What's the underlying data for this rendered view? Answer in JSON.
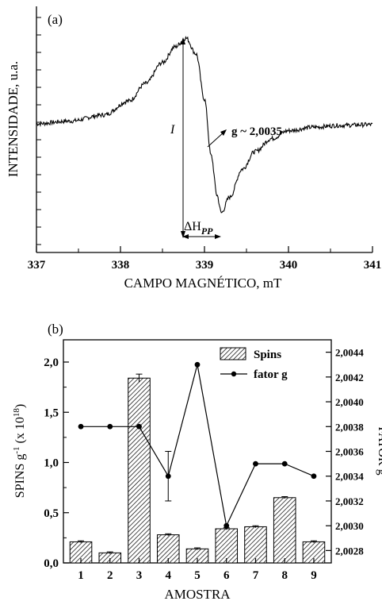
{
  "chart_data": [
    {
      "panel_label": "(a)",
      "type": "line",
      "xlabel": "CAMPO MAGNÉTICO, mT",
      "ylabel": "INTENSIDADE, u.a.",
      "xlim": [
        337,
        341
      ],
      "x_ticks": [
        "337",
        "338",
        "339",
        "340",
        "341"
      ],
      "y_ticks_labeled": false,
      "series": [
        {
          "x": [
            337.0,
            337.4,
            337.8,
            338.1,
            338.3,
            338.5,
            338.65,
            338.78,
            338.9,
            339.0,
            339.08,
            339.15,
            339.2,
            339.3,
            339.45,
            339.6,
            339.8,
            340.0,
            340.3,
            340.6,
            341.0
          ],
          "y": [
            0.02,
            0.05,
            0.12,
            0.28,
            0.48,
            0.72,
            0.9,
            1.0,
            0.82,
            0.3,
            -0.35,
            -0.8,
            -1.0,
            -0.82,
            -0.5,
            -0.3,
            -0.15,
            -0.06,
            -0.02,
            0.0,
            0.01
          ]
        }
      ],
      "annotations": {
        "g_value": "g ~ 2,0035",
        "intensity": "I",
        "linewidth": "ΔH",
        "linewidth_sub": "PP"
      }
    },
    {
      "panel_label": "(b)",
      "type": "bar",
      "xlabel": "AMOSTRA",
      "ylabel": "SPINS g",
      "ylabel_sup": "-1",
      "ylabel_rest": " (x 10",
      "ylabel_sup2": "18",
      "ylabel_end": ")",
      "y2label": "FATOR g",
      "categories": [
        "1",
        "2",
        "3",
        "4",
        "5",
        "6",
        "7",
        "8",
        "9"
      ],
      "ylim": [
        0,
        2.0
      ],
      "y_ticks": [
        {
          "value": 0,
          "label": "0,0"
        },
        {
          "value": 0.5,
          "label": "0,5"
        },
        {
          "value": 1.0,
          "label": "1,0"
        },
        {
          "value": 1.5,
          "label": "1,5"
        },
        {
          "value": 2.0,
          "label": "2,0"
        }
      ],
      "y2lim": [
        2.0027,
        2.0045
      ],
      "y2_ticks": [
        {
          "value": 2.0028,
          "label": "2,0028"
        },
        {
          "value": 2.003,
          "label": "2,0030"
        },
        {
          "value": 2.0032,
          "label": "2,0032"
        },
        {
          "value": 2.0034,
          "label": "2,0034"
        },
        {
          "value": 2.0036,
          "label": "2,0036"
        },
        {
          "value": 2.0038,
          "label": "2,0038"
        },
        {
          "value": 2.004,
          "label": "2,0040"
        },
        {
          "value": 2.0042,
          "label": "2,0042"
        },
        {
          "value": 2.0044,
          "label": "2,0044"
        }
      ],
      "series": [
        {
          "name": "Spins",
          "kind": "bar",
          "values": [
            0.21,
            0.1,
            1.84,
            0.28,
            0.14,
            0.34,
            0.36,
            0.65,
            0.21
          ],
          "errors": [
            0.01,
            0.01,
            0.04,
            0.01,
            0.01,
            0.01,
            0.01,
            0.01,
            0.01
          ]
        },
        {
          "name": "fator g",
          "kind": "line",
          "values": [
            2.0038,
            2.0038,
            2.0038,
            2.0034,
            2.0043,
            2.003,
            2.0035,
            2.0035,
            2.0034
          ],
          "errors": [
            0,
            0,
            0,
            0.0002,
            0,
            0,
            0,
            0,
            0
          ]
        }
      ],
      "legend_placement": "top-right"
    }
  ]
}
